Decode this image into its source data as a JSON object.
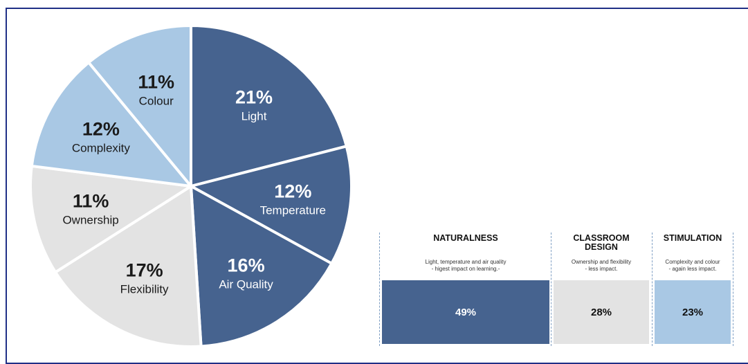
{
  "chart_data": [
    {
      "type": "pie",
      "slices": [
        {
          "label": "Light",
          "value": 21,
          "display": "21%",
          "color": "#46638f"
        },
        {
          "label": "Temperature",
          "value": 12,
          "display": "12%",
          "color": "#46638f"
        },
        {
          "label": "Air Quality",
          "value": 16,
          "display": "16%",
          "color": "#46638f"
        },
        {
          "label": "Flexibility",
          "value": 17,
          "display": "17%",
          "color": "#e3e3e3"
        },
        {
          "label": "Ownership",
          "value": 11,
          "display": "11%",
          "color": "#e3e3e3"
        },
        {
          "label": "Complexity",
          "value": 12,
          "display": "12%",
          "color": "#a9c8e4"
        },
        {
          "label": "Colour",
          "value": 11,
          "display": "11%",
          "color": "#a9c8e4"
        }
      ]
    },
    {
      "type": "table",
      "columns": [
        {
          "title": "NATURALNESS",
          "description": "Light, temperature and air quality\n- higest impact on learning.-",
          "value": 49,
          "display": "49%",
          "color": "#46638f"
        },
        {
          "title": "CLASSROOM\nDESIGN",
          "description": "Ownership and flexibility\n- less impact.",
          "value": 28,
          "display": "28%",
          "color": "#e3e3e3"
        },
        {
          "title": "STIMULATION",
          "description": "Complexity and colour\n- again less impact.",
          "value": 23,
          "display": "23%",
          "color": "#a9c8e4"
        }
      ]
    }
  ]
}
